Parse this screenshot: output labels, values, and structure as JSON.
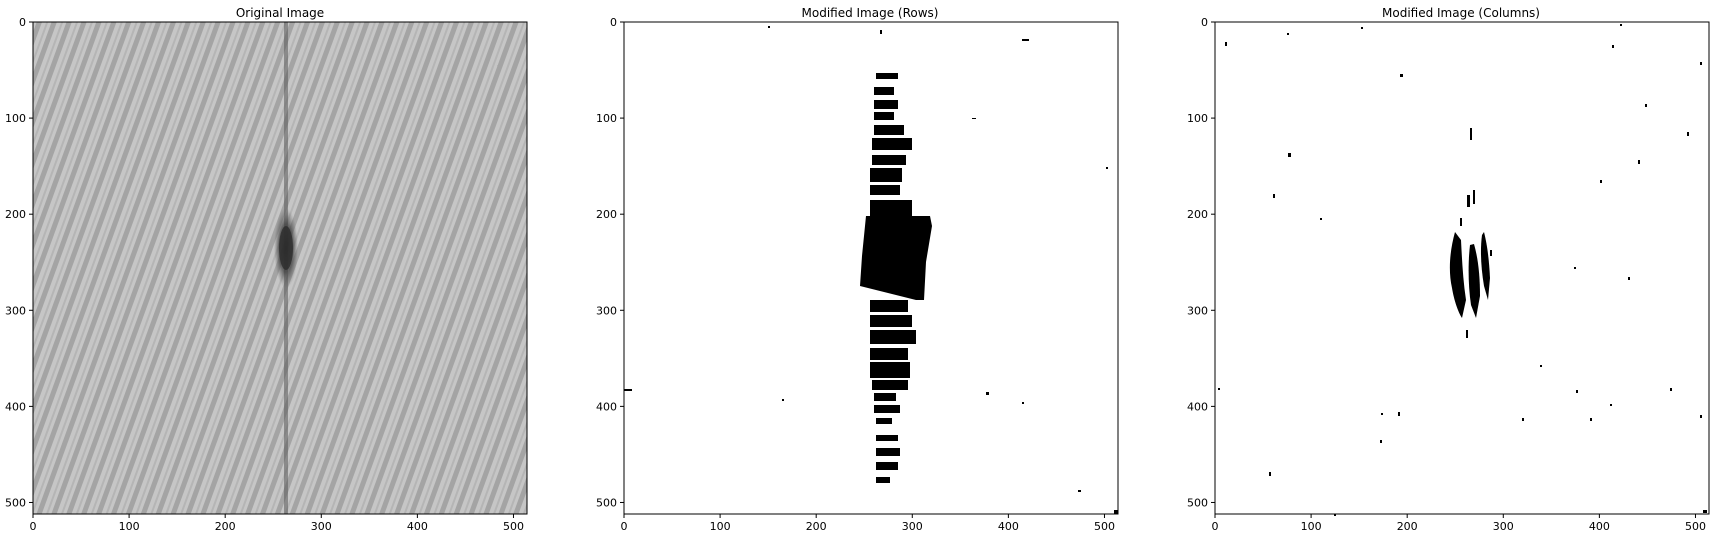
{
  "panels": [
    {
      "title": "Original Image",
      "xticks": [
        "0",
        "100",
        "200",
        "300",
        "400",
        "500"
      ],
      "yticks": [
        "0",
        "100",
        "200",
        "300",
        "400",
        "500"
      ],
      "kind": "original"
    },
    {
      "title": "Modified Image (Rows)",
      "xticks": [
        "0",
        "100",
        "200",
        "300",
        "400",
        "500"
      ],
      "yticks": [
        "0",
        "100",
        "200",
        "300",
        "400",
        "500"
      ],
      "kind": "rows"
    },
    {
      "title": "Modified Image (Columns)",
      "xticks": [
        "0",
        "100",
        "200",
        "300",
        "400",
        "500"
      ],
      "yticks": [
        "0",
        "100",
        "200",
        "300",
        "400",
        "500"
      ],
      "kind": "columns"
    }
  ],
  "colors": {
    "fabric_light": "#c9c9c9",
    "fabric_dark": "#9a9a9a",
    "defect": "#3a3a3a",
    "mask": "#000000"
  }
}
